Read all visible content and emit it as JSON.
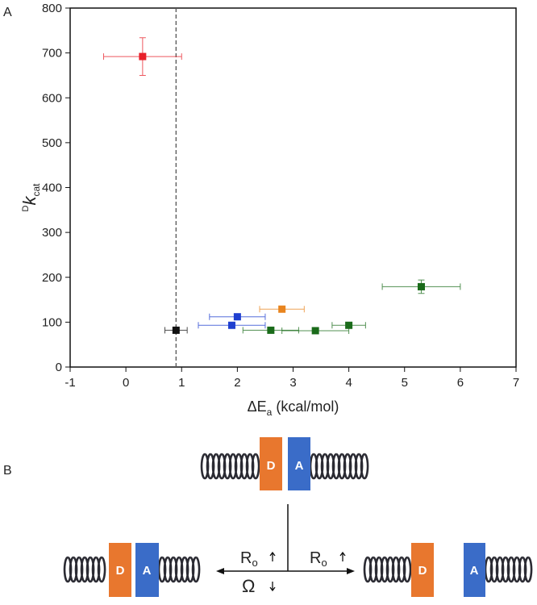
{
  "panels": {
    "a": "A",
    "b": "B"
  },
  "chart_data": {
    "type": "scatter",
    "xlabel_parts": [
      "ΔE",
      "a",
      " (kcal/mol)"
    ],
    "ylabel_parts": [
      "D",
      "k",
      "cat"
    ],
    "xlim": [
      -1,
      7
    ],
    "xticks": [
      -1,
      0,
      1,
      2,
      3,
      4,
      5,
      6,
      7
    ],
    "ylim": [
      0,
      800
    ],
    "yticks": [
      0,
      100,
      200,
      300,
      400,
      500,
      600,
      700,
      800
    ],
    "vline": 0.9,
    "series": [
      {
        "color": "#e8202a",
        "x": [
          0.3
        ],
        "values": [
          692
        ],
        "xerr": [
          0.7
        ],
        "yerr": [
          42
        ]
      },
      {
        "color": "#111111",
        "x": [
          0.9
        ],
        "values": [
          82
        ],
        "xerr": [
          0.2
        ],
        "yerr": [
          6
        ]
      },
      {
        "color": "#1f3fd0",
        "x": [
          2.0,
          1.9
        ],
        "values": [
          112,
          93
        ],
        "xerr": [
          0.5,
          0.6
        ],
        "yerr": [
          5,
          5
        ]
      },
      {
        "color": "#e8841e",
        "x": [
          2.8
        ],
        "values": [
          129
        ],
        "xerr": [
          0.4
        ],
        "yerr": [
          5
        ]
      },
      {
        "color": "#1a6b1a",
        "x": [
          2.6,
          3.4,
          4.0,
          5.3
        ],
        "values": [
          82,
          81,
          93,
          179
        ],
        "xerr": [
          0.5,
          0.6,
          0.3,
          0.7
        ],
        "yerr": [
          5,
          5,
          5,
          15
        ]
      }
    ]
  },
  "diagram": {
    "top": {
      "donor": "D",
      "acceptor": "A"
    },
    "left": {
      "donor": "D",
      "acceptor": "A"
    },
    "right": {
      "donor": "D",
      "acceptor": "A"
    },
    "rate_left": [
      "R",
      "o"
    ],
    "rate_right": [
      "R",
      "o"
    ],
    "omega": "Ω"
  }
}
